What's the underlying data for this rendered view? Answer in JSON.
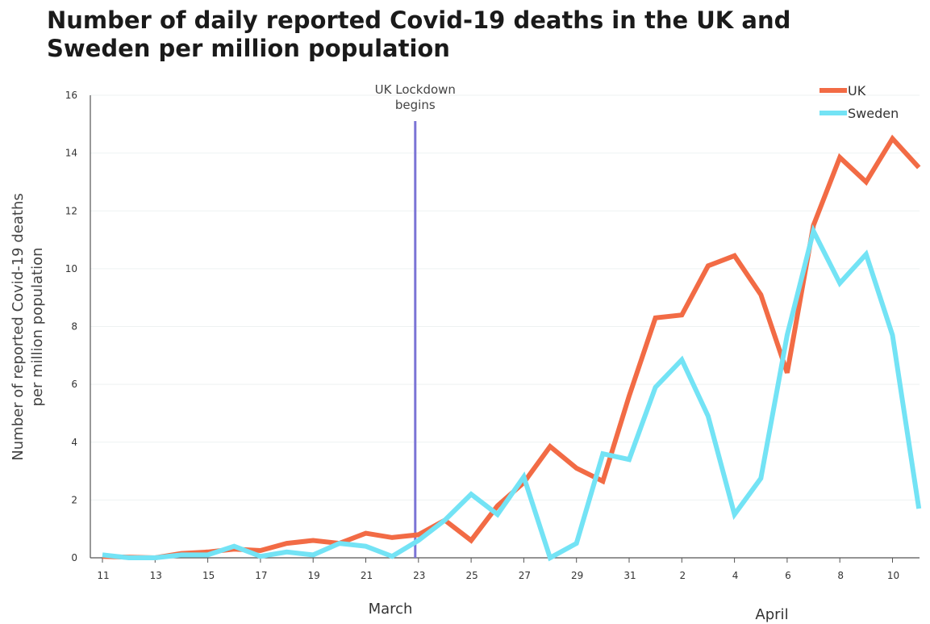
{
  "chart_data": {
    "type": "line",
    "title": "Number of daily reported Covid-19 deaths in the UK and Sweden per million population",
    "ylabel": "Number of reported Covid-19 deaths per million population",
    "ylabel_lines": [
      "Number of reported Covid-19 deaths",
      "per million population"
    ],
    "ylim": [
      0,
      16
    ],
    "yticks": [
      0,
      2,
      4,
      6,
      8,
      10,
      12,
      14,
      16
    ],
    "x": [
      "Mar 11",
      "Mar 12",
      "Mar 13",
      "Mar 14",
      "Mar 15",
      "Mar 16",
      "Mar 17",
      "Mar 18",
      "Mar 19",
      "Mar 20",
      "Mar 21",
      "Mar 22",
      "Mar 23",
      "Mar 24",
      "Mar 25",
      "Mar 26",
      "Mar 27",
      "Mar 28",
      "Mar 29",
      "Mar 30",
      "Mar 31",
      "Apr 1",
      "Apr 2",
      "Apr 3",
      "Apr 4",
      "Apr 5",
      "Apr 6",
      "Apr 7",
      "Apr 8",
      "Apr 9",
      "Apr 10",
      "Apr 11"
    ],
    "x_tick_labels": [
      "11",
      "13",
      "15",
      "17",
      "19",
      "21",
      "23",
      "25",
      "27",
      "29",
      "31",
      "2",
      "4",
      "6",
      "8",
      "10"
    ],
    "month_labels": [
      "March",
      "April"
    ],
    "grid": "horizontal",
    "legend_position": "top-right",
    "series": [
      {
        "name": "UK",
        "color": "#f26b45",
        "values": [
          0.05,
          0.02,
          0.0,
          0.15,
          0.2,
          0.3,
          0.25,
          0.5,
          0.6,
          0.5,
          0.85,
          0.7,
          0.8,
          1.3,
          0.6,
          1.8,
          2.6,
          3.85,
          3.1,
          2.65,
          5.6,
          8.3,
          8.4,
          10.1,
          10.45,
          9.1,
          6.4,
          11.5,
          13.85,
          13.0,
          14.5,
          13.5
        ]
      },
      {
        "name": "Sweden",
        "color": "#73e3f5",
        "values": [
          0.1,
          0.0,
          0.0,
          0.1,
          0.1,
          0.4,
          0.05,
          0.2,
          0.1,
          0.5,
          0.4,
          0.05,
          0.6,
          1.3,
          2.2,
          1.5,
          2.8,
          0.0,
          0.5,
          3.6,
          3.4,
          5.9,
          6.85,
          4.9,
          1.5,
          2.75,
          7.7,
          11.3,
          9.5,
          10.5,
          7.7,
          1.7
        ]
      }
    ],
    "annotations": [
      {
        "text_lines": [
          "UK Lockdown",
          "begins"
        ],
        "x": "Mar 23",
        "color": "#7b74d6"
      }
    ]
  }
}
